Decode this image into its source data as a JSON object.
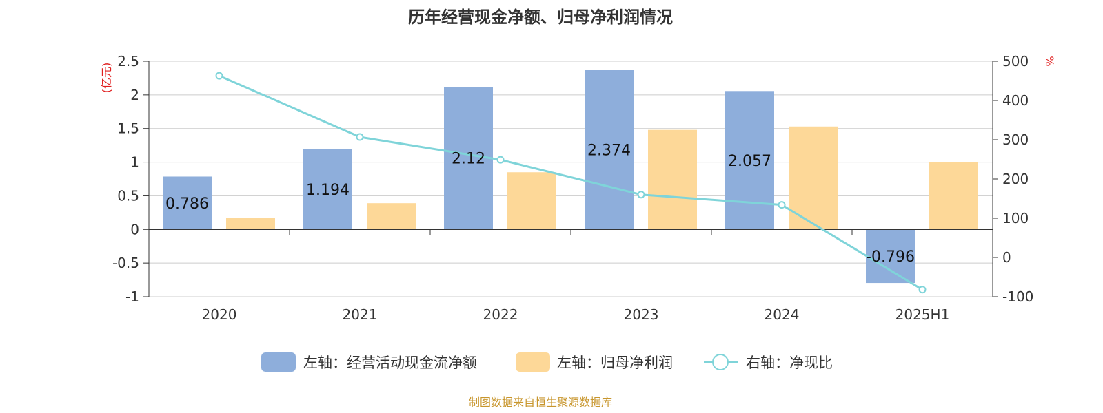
{
  "chart_data": {
    "type": "bar",
    "title": "历年经营现金净额、归母净利润情况",
    "categories": [
      "2020",
      "2021",
      "2022",
      "2023",
      "2024",
      "2025H1"
    ],
    "left_axis": {
      "unit_label": "(亿元)",
      "ylim": [
        -1,
        2.5
      ],
      "ticks": [
        -1,
        -0.5,
        0,
        0.5,
        1,
        1.5,
        2,
        2.5
      ],
      "tick_labels": [
        "-1",
        "-0.5",
        "0",
        "0.5",
        "1",
        "1.5",
        "2",
        "2.5"
      ]
    },
    "right_axis": {
      "unit_label": "%",
      "ylim": [
        -100,
        500
      ],
      "ticks": [
        -100,
        0,
        100,
        200,
        300,
        400,
        500
      ],
      "tick_labels": [
        "-100",
        "0",
        "100",
        "200",
        "300",
        "400",
        "500"
      ]
    },
    "series": [
      {
        "name": "左轴：经营活动现金流净额",
        "type": "bar",
        "axis": "left",
        "color": "#8eaedb",
        "values": [
          0.786,
          1.194,
          2.12,
          2.374,
          2.057,
          -0.796
        ],
        "labels": [
          "0.786",
          "1.194",
          "2.12",
          "2.374",
          "2.057",
          "-0.796"
        ]
      },
      {
        "name": "左轴：归母净利润",
        "type": "bar",
        "axis": "left",
        "color": "#fdd898",
        "values": [
          0.17,
          0.39,
          0.85,
          1.48,
          1.53,
          1.0
        ]
      },
      {
        "name": "右轴：净现比",
        "type": "line",
        "axis": "right",
        "color": "#7fd4d9",
        "values": [
          463,
          307,
          249,
          160,
          134,
          -82
        ]
      }
    ],
    "grid": true,
    "legend_position": "bottom",
    "source": "制图数据来自恒生聚源数据库"
  }
}
